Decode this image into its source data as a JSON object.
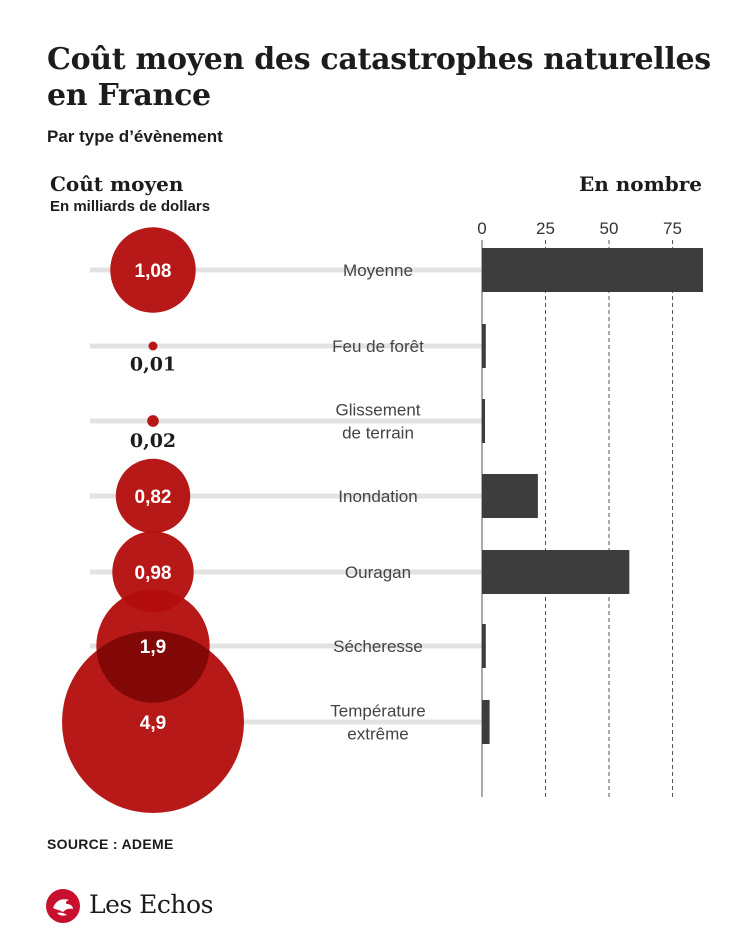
{
  "title": "Coût moyen des catastrophes naturelles en France",
  "subtitle": "Par type d’évènement",
  "left_header": {
    "title": "Coût moyen",
    "subtitle": "En milliards de dollars"
  },
  "right_header": {
    "title": "En nombre"
  },
  "source": "SOURCE : ADEME",
  "logo": {
    "text": "Les Echos",
    "icon": "les-echos-lion-icon"
  },
  "colors": {
    "bubble": "#b30d0d",
    "bar": "#3d3d3d",
    "track": "#e3e3e3",
    "text_dark": "#1c1c1c"
  },
  "chart_data": [
    {
      "type": "bubble",
      "title": "Coût moyen",
      "unit": "En milliards de dollars",
      "categories": [
        "Moyenne",
        "Feu de forêt",
        "Glissement de terrain",
        "Inondation",
        "Ouragan",
        "Sécheresse",
        "Température extrême"
      ],
      "values": [
        1.08,
        0.01,
        0.02,
        0.82,
        0.98,
        1.9,
        4.9
      ],
      "labels": [
        "1,08",
        "0,01",
        "0,02",
        "0,82",
        "0,98",
        "1,9",
        "4,9"
      ]
    },
    {
      "type": "bar",
      "orientation": "horizontal",
      "title": "En nombre",
      "categories": [
        "Moyenne",
        "Feu de forêt",
        "Glissement de terrain",
        "Inondation",
        "Ouragan",
        "Sécheresse",
        "Température extrême"
      ],
      "category_lines": [
        [
          "Moyenne"
        ],
        [
          "Feu de forêt"
        ],
        [
          "Glissement",
          "de terrain"
        ],
        [
          "Inondation"
        ],
        [
          "Ouragan"
        ],
        [
          "Sécheresse"
        ],
        [
          "Température",
          "extrême"
        ]
      ],
      "values": [
        87,
        1.5,
        1,
        22,
        58,
        1.5,
        3
      ],
      "xticks": [
        0,
        25,
        50,
        75
      ],
      "xlim": [
        0,
        87
      ],
      "grid": "dashed vertical"
    }
  ]
}
